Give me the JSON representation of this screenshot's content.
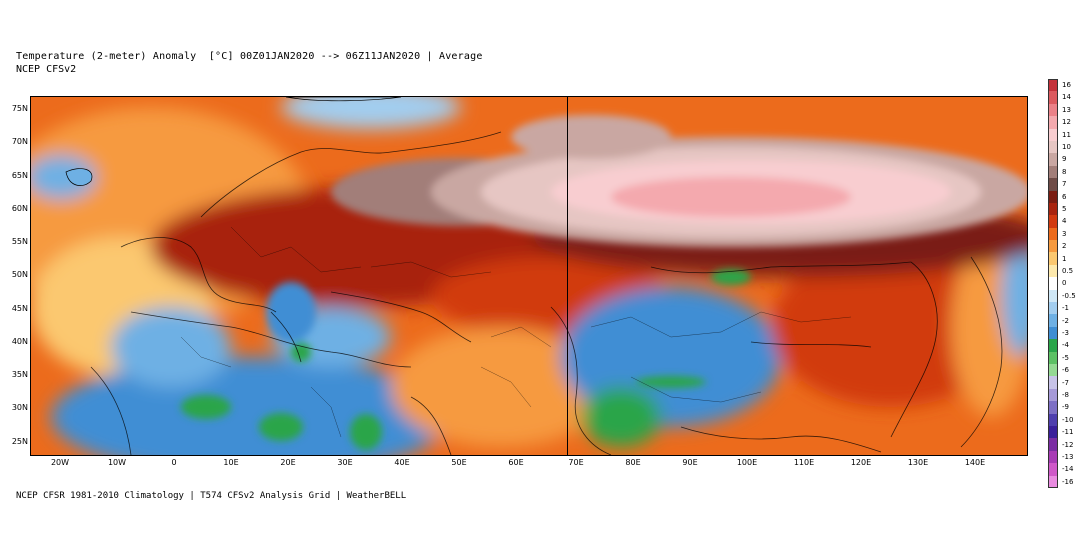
{
  "header": {
    "title": "Temperature (2-meter) Anomaly  [°C] 00Z01JAN2020 --> 06Z11JAN2020 | Average",
    "subtitle": "NCEP CFSv2"
  },
  "footer": {
    "text": "NCEP CFSR 1981-2010 Climatology | T574 CFSv2 Analysis Grid | WeatherBELL"
  },
  "map": {
    "lat_labels": [
      "75N",
      "70N",
      "65N",
      "60N",
      "55N",
      "50N",
      "45N",
      "40N",
      "35N",
      "30N",
      "25N"
    ],
    "lon_labels": [
      "20W",
      "10W",
      "0",
      "10E",
      "20E",
      "30E",
      "40E",
      "50E",
      "60E",
      "70E",
      "80E",
      "90E",
      "100E",
      "110E",
      "120E",
      "130E",
      "140E"
    ]
  },
  "colorbar": {
    "labels": [
      "16",
      "14",
      "13",
      "12",
      "11",
      "10",
      "9",
      "8",
      "7",
      "6",
      "5",
      "4",
      "3",
      "2",
      "1",
      "0.5",
      "0",
      "-0.5",
      "-1",
      "-2",
      "-3",
      "-4",
      "-5",
      "-6",
      "-7",
      "-8",
      "-9",
      "-10",
      "-11",
      "-12",
      "-13",
      "-14",
      "-16"
    ],
    "colors": [
      "#c4323b",
      "#dc5a5f",
      "#eb8188",
      "#f4a9ae",
      "#f8cdd0",
      "#e6c6c3",
      "#c9a7a2",
      "#a27e79",
      "#6e4b46",
      "#7a1d12",
      "#a8240f",
      "#d13a10",
      "#ec6b1c",
      "#f69a3f",
      "#fbc870",
      "#fde9ad",
      "#ffffff",
      "#cfe7f6",
      "#a2cdef",
      "#6eb0e4",
      "#3f8ed4",
      "#2aa54a",
      "#5cc064",
      "#94d993",
      "#c7c3e8",
      "#a69ad8",
      "#7d6fc4",
      "#4f3fae",
      "#3a1f9a",
      "#7b2da3",
      "#a83bb5",
      "#cf58c8",
      "#e98be0"
    ]
  }
}
